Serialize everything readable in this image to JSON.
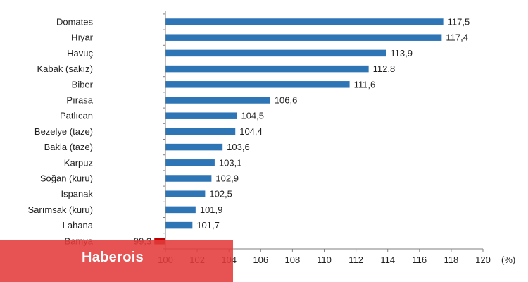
{
  "chart_data": {
    "type": "bar",
    "orientation": "horizontal",
    "categories": [
      "Domates",
      "Hıyar",
      "Havuç",
      "Kabak (sakız)",
      "Biber",
      "Pırasa",
      "Patlıcan",
      "Bezelye (taze)",
      "Bakla (taze)",
      "Karpuz",
      "Soğan (kuru)",
      "Ispanak",
      "Sarımsak (kuru)",
      "Lahana",
      "Bamya"
    ],
    "values": [
      117.5,
      117.4,
      113.9,
      112.8,
      111.6,
      106.6,
      104.5,
      104.4,
      103.6,
      103.1,
      102.9,
      102.5,
      101.9,
      101.7,
      99.3
    ],
    "value_labels": [
      "117,5",
      "117,4",
      "113,9",
      "112,8",
      "111,6",
      "106,6",
      "104,5",
      "104,4",
      "103,6",
      "103,1",
      "102,9",
      "102,5",
      "101,9",
      "101,7",
      "99,3"
    ],
    "baseline": 100,
    "xlim": [
      100,
      120
    ],
    "xticks": [
      "100",
      "102",
      "104",
      "106",
      "108",
      "110",
      "112",
      "114",
      "116",
      "118",
      "120"
    ],
    "xunit": "(%)",
    "title": "",
    "xlabel": "",
    "ylabel": "",
    "grid": false,
    "colors": {
      "positive": "#2e75b6",
      "negative": "#c00000",
      "axis": "#7f7f7f"
    }
  },
  "watermark": {
    "text": "Haberois",
    "color": "#e43a3a"
  }
}
